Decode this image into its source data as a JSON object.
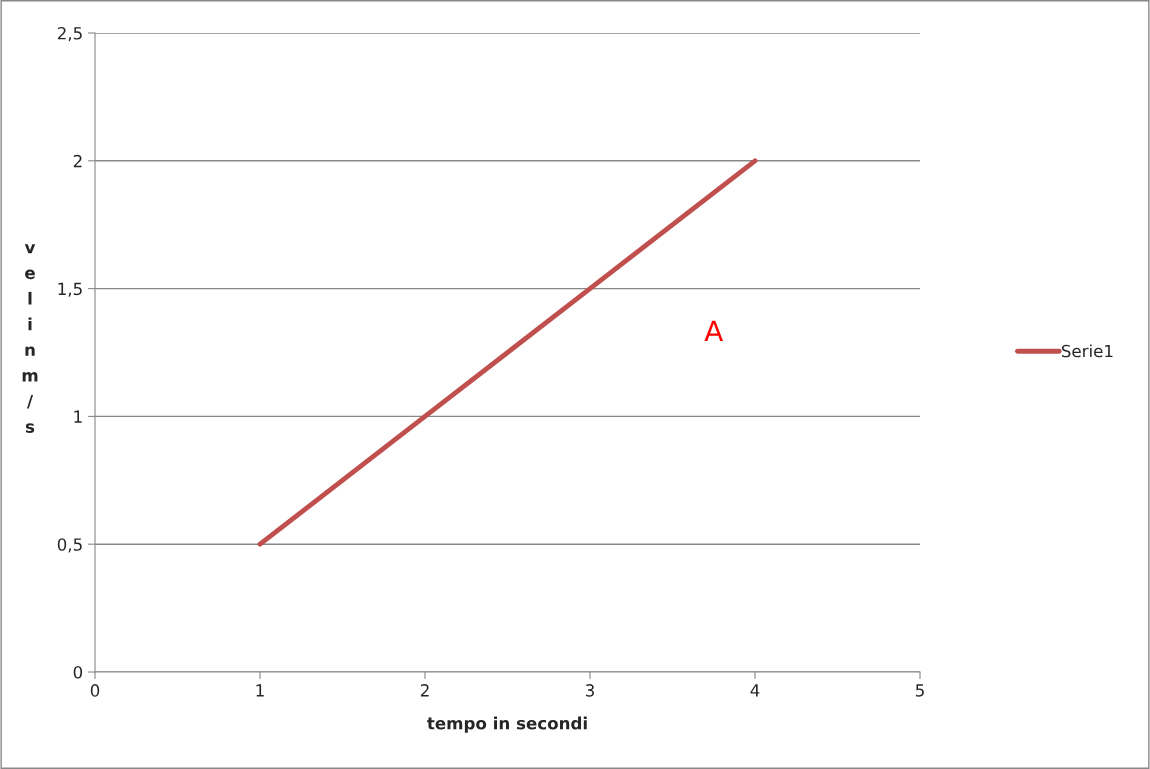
{
  "chart_data": {
    "type": "line",
    "xlabel": "tempo in secondi",
    "ylabel": "vel in m/s",
    "x": [
      1,
      2,
      3,
      4
    ],
    "series": [
      {
        "name": "Serie1",
        "color": "#c0504d",
        "values": [
          0.5,
          1,
          1.5,
          2
        ]
      }
    ],
    "xlim": [
      0,
      5
    ],
    "xticks": [
      0,
      1,
      2,
      3,
      4,
      5
    ],
    "ylim": [
      0,
      2.5
    ],
    "yticks": [
      0,
      {
        "value": 0.5,
        "label": "0,5"
      },
      1,
      {
        "value": 1.5,
        "label": "1,5"
      },
      2,
      {
        "value": 2.5,
        "label": "2,5"
      }
    ],
    "grid": "y",
    "legend": "right",
    "marker": "none",
    "line_style": "solid",
    "annotations": [
      "A"
    ]
  }
}
